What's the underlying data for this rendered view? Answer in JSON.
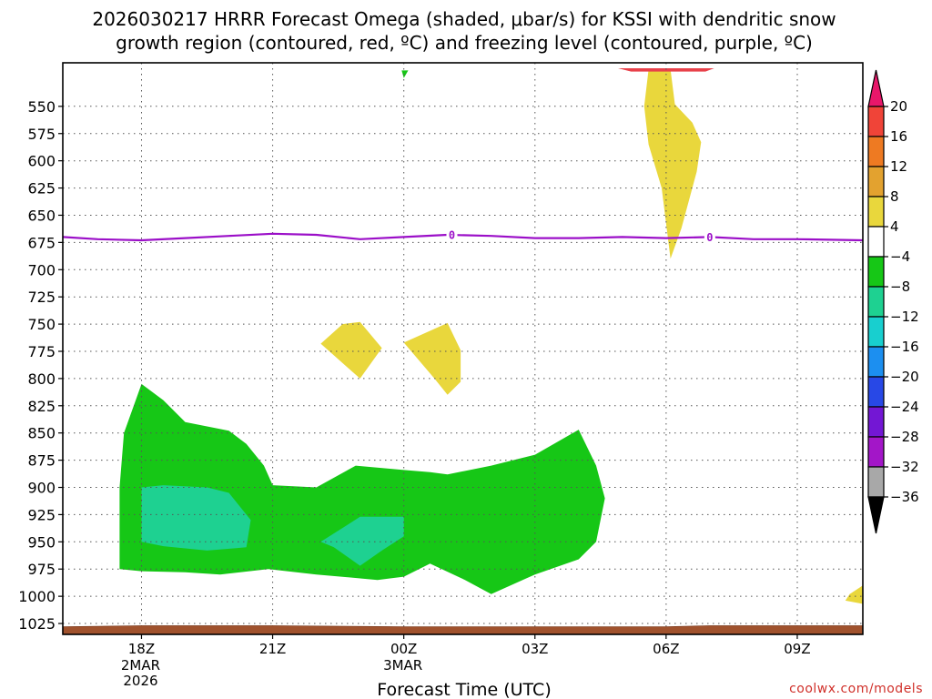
{
  "chart_data": {
    "type": "time-height contour",
    "title_line1": "2026030217 HRRR Forecast Omega (shaded, μbar/s) for KSSI with dendritic snow",
    "title_line2": "growth region (contoured, red, ºC) and freezing level (contoured, purple, ºC)",
    "xlabel": "Forecast Time (UTC)",
    "ylabel": "",
    "credit": "coolwx.com/models",
    "x_range_hours": [
      16.2,
      34.5
    ],
    "y_range_mb": [
      1035,
      510
    ],
    "x_ticks": [
      {
        "hour": 18,
        "label": "18Z",
        "sub": [
          "2MAR",
          "2026"
        ]
      },
      {
        "hour": 21,
        "label": "21Z",
        "sub": []
      },
      {
        "hour": 24,
        "label": "00Z",
        "sub": [
          "3MAR"
        ]
      },
      {
        "hour": 27,
        "label": "03Z",
        "sub": []
      },
      {
        "hour": 30,
        "label": "06Z",
        "sub": []
      },
      {
        "hour": 33,
        "label": "09Z",
        "sub": []
      }
    ],
    "y_ticks": [
      550,
      575,
      600,
      625,
      650,
      675,
      700,
      725,
      750,
      775,
      800,
      825,
      850,
      875,
      900,
      925,
      950,
      975,
      1000,
      1025
    ],
    "colorbar": {
      "ticks": [
        "20",
        "16",
        "12",
        "8",
        "4",
        "−4",
        "−8",
        "−12",
        "−16",
        "−20",
        "−24",
        "−28",
        "−32",
        "−36"
      ],
      "colors_top_to_bottom": [
        "#e8176a",
        "#f04438",
        "#ee7a22",
        "#e3a22f",
        "#e9d73c",
        "#ffffff",
        "#16c716",
        "#1ed191",
        "#18cfcf",
        "#1c8ff0",
        "#2848e6",
        "#7317d4",
        "#a316c8",
        "#a8a8a8",
        "#000000"
      ]
    },
    "freezing_level": {
      "label": "0",
      "label_hours": [
        25.1,
        31.0
      ],
      "color": "#9b0fc8",
      "points": [
        [
          16.2,
          670
        ],
        [
          17,
          672
        ],
        [
          18,
          673
        ],
        [
          19,
          671
        ],
        [
          20,
          669
        ],
        [
          21,
          667
        ],
        [
          22,
          668
        ],
        [
          23,
          672
        ],
        [
          24,
          670
        ],
        [
          25,
          668
        ],
        [
          26,
          669
        ],
        [
          27,
          671
        ],
        [
          28,
          671
        ],
        [
          29,
          670
        ],
        [
          30,
          671
        ],
        [
          31,
          670
        ],
        [
          32,
          672
        ],
        [
          33,
          672
        ],
        [
          34.5,
          673
        ]
      ]
    },
    "omega_regions": [
      {
        "name": "upward-motion-green",
        "value_range": "-8 to -4",
        "color": "#16c716",
        "points": [
          [
            17.5,
            975
          ],
          [
            17.5,
            900
          ],
          [
            17.6,
            850
          ],
          [
            18,
            805
          ],
          [
            18.5,
            820
          ],
          [
            19,
            840
          ],
          [
            20,
            848
          ],
          [
            20.4,
            860
          ],
          [
            20.8,
            880
          ],
          [
            21,
            898
          ],
          [
            22,
            900
          ],
          [
            22.9,
            880
          ],
          [
            24,
            884
          ],
          [
            24.6,
            886
          ],
          [
            25,
            888
          ],
          [
            26,
            880
          ],
          [
            27,
            870
          ],
          [
            28,
            847
          ],
          [
            28.4,
            880
          ],
          [
            28.6,
            910
          ],
          [
            28.4,
            950
          ],
          [
            28,
            966
          ],
          [
            27,
            980
          ],
          [
            26,
            998
          ],
          [
            25.4,
            985
          ],
          [
            24.6,
            970
          ],
          [
            24,
            982
          ],
          [
            23.4,
            985
          ],
          [
            22,
            980
          ],
          [
            20.9,
            975
          ],
          [
            19.8,
            980
          ],
          [
            19,
            978
          ],
          [
            18,
            977
          ]
        ]
      },
      {
        "name": "upward-motion-teal-west",
        "value_range": "-12 to -8",
        "color": "#1ed191",
        "points": [
          [
            18,
            950
          ],
          [
            18,
            900
          ],
          [
            18.5,
            898
          ],
          [
            19.5,
            900
          ],
          [
            20,
            905
          ],
          [
            20.5,
            930
          ],
          [
            20.4,
            955
          ],
          [
            19.5,
            958
          ],
          [
            18.5,
            954
          ]
        ]
      },
      {
        "name": "upward-motion-teal-center",
        "value_range": "-12 to -8",
        "color": "#1ed191",
        "points": [
          [
            22.1,
            950
          ],
          [
            23,
            927
          ],
          [
            24,
            927
          ],
          [
            24,
            945
          ],
          [
            23.5,
            958
          ],
          [
            23,
            972
          ],
          [
            22.4,
            955
          ]
        ]
      },
      {
        "name": "sinking-yellow-upper",
        "value_range": "4 to 8",
        "color": "#e9d73c",
        "points": [
          [
            29.6,
            516
          ],
          [
            30.1,
            516
          ],
          [
            30.2,
            548
          ],
          [
            30.6,
            565
          ],
          [
            30.8,
            583
          ],
          [
            30.7,
            610
          ],
          [
            30.35,
            662
          ],
          [
            30.1,
            690
          ],
          [
            29.9,
            625
          ],
          [
            29.6,
            585
          ],
          [
            29.5,
            550
          ]
        ]
      },
      {
        "name": "sinking-yellow-center-left",
        "value_range": "4 to 8",
        "color": "#e9d73c",
        "points": [
          [
            22.1,
            768
          ],
          [
            22.6,
            750
          ],
          [
            23,
            748
          ],
          [
            23.5,
            772
          ],
          [
            23,
            800
          ]
        ]
      },
      {
        "name": "sinking-yellow-center-right",
        "value_range": "4 to 8",
        "color": "#e9d73c",
        "points": [
          [
            24,
            767
          ],
          [
            25,
            749
          ],
          [
            25.3,
            774
          ],
          [
            25.3,
            803
          ],
          [
            25,
            815
          ],
          [
            24.7,
            800
          ]
        ]
      },
      {
        "name": "sinking-yellow-corner",
        "value_range": "4 to 8",
        "color": "#e9d73c",
        "points": [
          [
            34.5,
            990
          ],
          [
            34.5,
            1007
          ],
          [
            34.1,
            1004
          ],
          [
            34.2,
            998
          ]
        ]
      },
      {
        "name": "upward-motion-green-top",
        "value_range": "-8 to -4",
        "color": "#16c716",
        "points": [
          [
            23.95,
            517
          ],
          [
            24.1,
            517
          ],
          [
            24,
            524
          ]
        ]
      },
      {
        "name": "dgz-red-top",
        "value_range": "dendritic growth region",
        "color": "#e8414a",
        "points": [
          [
            28.9,
            515
          ],
          [
            31.1,
            515
          ],
          [
            30.9,
            518
          ],
          [
            29.2,
            518
          ]
        ]
      }
    ],
    "terrain": {
      "color": "#a0522d",
      "points": [
        [
          16.2,
          1028
        ],
        [
          18,
          1027
        ],
        [
          21,
          1027
        ],
        [
          24,
          1028
        ],
        [
          27,
          1028
        ],
        [
          30,
          1028
        ],
        [
          31,
          1027
        ],
        [
          34.5,
          1027
        ]
      ]
    }
  }
}
